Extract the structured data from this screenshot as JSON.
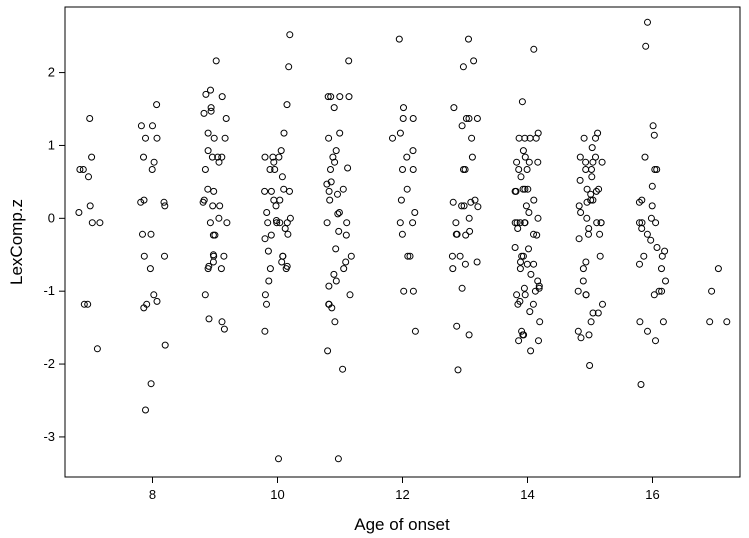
{
  "chart_data": {
    "type": "scatter",
    "xlabel": "Age of onset",
    "ylabel": "LexComp.z",
    "xlim": [
      6.6,
      17.4
    ],
    "ylim": [
      -3.55,
      2.9
    ],
    "xticks": [
      8,
      10,
      12,
      14,
      16
    ],
    "yticks": [
      -3,
      -2,
      -1,
      0,
      1,
      2
    ],
    "marker": "open-circle",
    "marker_color": "#000000",
    "grid": false,
    "groups": [
      {
        "age": 7,
        "y": [
          1.37,
          0.84,
          0.67,
          0.67,
          0.57,
          0.17,
          0.08,
          -0.06,
          -0.06,
          -1.18,
          -1.18,
          -1.79
        ]
      },
      {
        "age": 8,
        "y": [
          1.56,
          1.27,
          1.27,
          1.1,
          1.1,
          0.84,
          0.77,
          0.67,
          0.25,
          0.22,
          0.22,
          0.17,
          -0.22,
          -0.22,
          -0.52,
          -0.52,
          -0.69,
          -1.05,
          -1.14,
          -1.18,
          -1.23,
          -1.74,
          -2.27,
          -2.63
        ]
      },
      {
        "age": 9,
        "y": [
          2.16,
          1.76,
          1.7,
          1.67,
          1.52,
          1.47,
          1.44,
          1.37,
          1.17,
          1.1,
          1.1,
          0.93,
          0.84,
          0.84,
          0.84,
          0.77,
          0.67,
          0.4,
          0.37,
          0.25,
          0.22,
          0.17,
          0.17,
          0.0,
          -0.06,
          -0.06,
          -0.23,
          -0.23,
          -0.5,
          -0.52,
          -0.52,
          -0.6,
          -0.66,
          -0.69,
          -0.69,
          -1.05,
          -1.38,
          -1.42,
          -1.52
        ]
      },
      {
        "age": 10,
        "y": [
          2.52,
          2.08,
          1.56,
          1.17,
          0.93,
          0.84,
          0.84,
          0.84,
          0.77,
          0.67,
          0.67,
          0.57,
          0.4,
          0.37,
          0.37,
          0.37,
          0.25,
          0.25,
          0.17,
          0.08,
          0.0,
          -0.03,
          -0.06,
          -0.06,
          -0.06,
          -0.06,
          -0.14,
          -0.22,
          -0.23,
          -0.28,
          -0.45,
          -0.52,
          -0.52,
          -0.6,
          -0.66,
          -0.69,
          -0.69,
          -0.86,
          -1.05,
          -1.18,
          -1.55,
          -3.3
        ]
      },
      {
        "age": 11,
        "y": [
          2.16,
          1.67,
          1.67,
          1.67,
          1.67,
          1.52,
          1.17,
          1.1,
          0.93,
          0.84,
          0.77,
          0.69,
          0.67,
          0.5,
          0.47,
          0.4,
          0.37,
          0.33,
          0.25,
          0.08,
          0.06,
          -0.06,
          -0.06,
          -0.18,
          -0.23,
          -0.42,
          -0.52,
          -0.6,
          -0.69,
          -0.77,
          -0.86,
          -0.93,
          -1.05,
          -1.18,
          -1.18,
          -1.23,
          -1.42,
          -1.82,
          -2.07,
          -3.3
        ]
      },
      {
        "age": 12,
        "y": [
          2.46,
          1.52,
          1.37,
          1.37,
          1.17,
          1.1,
          0.93,
          0.84,
          0.67,
          0.67,
          0.4,
          0.25,
          0.08,
          -0.06,
          -0.06,
          -0.22,
          -0.52,
          -0.52,
          -1.0,
          -1.0,
          -1.55
        ]
      },
      {
        "age": 13,
        "y": [
          2.46,
          2.16,
          2.08,
          1.52,
          1.37,
          1.37,
          1.37,
          1.27,
          1.1,
          0.84,
          0.67,
          0.67,
          0.25,
          0.22,
          0.22,
          0.17,
          0.17,
          0.16,
          0.0,
          -0.06,
          -0.18,
          -0.22,
          -0.22,
          -0.23,
          -0.52,
          -0.52,
          -0.6,
          -0.63,
          -0.69,
          -0.96,
          -1.48,
          -1.6,
          -2.08
        ]
      },
      {
        "age": 14,
        "y": [
          2.32,
          1.6,
          1.17,
          1.1,
          1.1,
          1.1,
          1.1,
          0.93,
          0.84,
          0.77,
          0.77,
          0.77,
          0.67,
          0.67,
          0.57,
          0.4,
          0.4,
          0.4,
          0.37,
          0.37,
          0.25,
          0.17,
          0.08,
          0.0,
          -0.06,
          -0.06,
          -0.06,
          -0.06,
          -0.06,
          -0.14,
          -0.22,
          -0.23,
          -0.4,
          -0.42,
          -0.52,
          -0.52,
          -0.6,
          -0.63,
          -0.63,
          -0.69,
          -0.77,
          -0.86,
          -0.93,
          -0.96,
          -0.96,
          -1.0,
          -1.05,
          -1.05,
          -1.14,
          -1.18,
          -1.18,
          -1.28,
          -1.42,
          -1.55,
          -1.6,
          -1.6,
          -1.68,
          -1.68,
          -1.82
        ]
      },
      {
        "age": 15,
        "y": [
          1.17,
          1.1,
          1.1,
          0.97,
          0.84,
          0.84,
          0.77,
          0.77,
          0.77,
          0.67,
          0.67,
          0.57,
          0.52,
          0.4,
          0.4,
          0.37,
          0.33,
          0.25,
          0.25,
          0.22,
          0.17,
          0.08,
          0.0,
          -0.06,
          -0.06,
          -0.06,
          -0.14,
          -0.22,
          -0.22,
          -0.28,
          -0.52,
          -0.6,
          -0.69,
          -0.86,
          -1.0,
          -1.05,
          -1.05,
          -1.18,
          -1.3,
          -1.3,
          -1.42,
          -1.55,
          -1.6,
          -1.64,
          -2.02
        ]
      },
      {
        "age": 16,
        "y": [
          2.69,
          2.36,
          1.27,
          1.14,
          0.84,
          0.67,
          0.67,
          0.44,
          0.25,
          0.22,
          0.17,
          0.0,
          -0.06,
          -0.06,
          -0.06,
          -0.14,
          -0.22,
          -0.3,
          -0.4,
          -0.45,
          -0.52,
          -0.52,
          -0.63,
          -0.69,
          -0.86,
          -1.0,
          -1.0,
          -1.05,
          -1.42,
          -1.42,
          -1.55,
          -1.68,
          -2.28
        ]
      },
      {
        "age": 17,
        "y": [
          -0.69,
          -1.0,
          -1.42,
          -1.42
        ]
      }
    ]
  }
}
